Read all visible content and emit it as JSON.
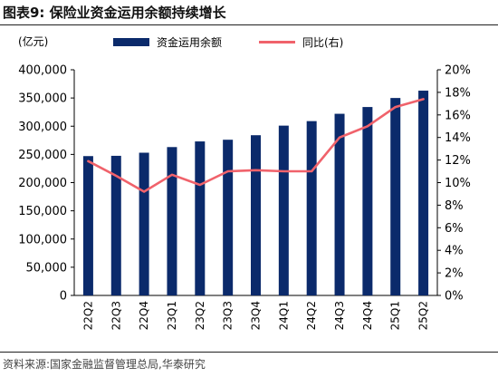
{
  "header": {
    "title": "图表9:  保险业资金运用余额持续增长"
  },
  "footer": {
    "source": "资料来源:国家金融监督管理总局,华泰研究"
  },
  "chart_data": {
    "type": "bar",
    "unit_label": "(亿元)",
    "categories": [
      "22Q2",
      "22Q3",
      "22Q4",
      "23Q1",
      "23Q2",
      "23Q3",
      "23Q4",
      "24Q1",
      "24Q2",
      "24Q3",
      "24Q4",
      "25Q1",
      "25Q2"
    ],
    "series": [
      {
        "name": "资金运用余额",
        "type": "bar",
        "axis": "left",
        "color": "#0b2a6b",
        "values": [
          247000,
          247500,
          253000,
          263000,
          273000,
          276000,
          284000,
          301000,
          309000,
          322000,
          334000,
          350000,
          363000
        ]
      },
      {
        "name": "同比(右)",
        "type": "line",
        "axis": "right",
        "color": "#f0626b",
        "values": [
          11.9,
          10.6,
          9.2,
          10.7,
          9.8,
          11.0,
          11.1,
          11.0,
          11.0,
          14.0,
          15.0,
          16.7,
          17.4
        ]
      }
    ],
    "y_left": {
      "min": 0,
      "max": 400000,
      "step": 50000,
      "tick_labels": [
        "0",
        "50,000",
        "100,000",
        "150,000",
        "200,000",
        "250,000",
        "300,000",
        "350,000",
        "400,000"
      ]
    },
    "y_right": {
      "min": 0,
      "max": 20,
      "step": 2,
      "tick_labels": [
        "0%",
        "2%",
        "4%",
        "6%",
        "8%",
        "10%",
        "12%",
        "14%",
        "16%",
        "18%",
        "20%"
      ]
    },
    "grid": false,
    "legend_position": "top"
  }
}
